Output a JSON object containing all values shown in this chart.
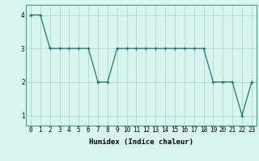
{
  "xlabel": "Humidex (Indice chaleur)",
  "ylabel": "",
  "x": [
    0,
    1,
    2,
    3,
    4,
    5,
    6,
    7,
    8,
    9,
    10,
    11,
    12,
    13,
    14,
    15,
    16,
    17,
    18,
    19,
    20,
    21,
    22,
    23
  ],
  "y": [
    4,
    4,
    3,
    3,
    3,
    3,
    3,
    2,
    2,
    3,
    3,
    3,
    3,
    3,
    3,
    3,
    3,
    3,
    3,
    2,
    2,
    2,
    1,
    2
  ],
  "line_color": "#1a7a6e",
  "marker": "+",
  "marker_color": "#1a7a6e",
  "bg_color": "#d8f5f0",
  "grid_color": "#aed8d2",
  "ylim": [
    0.7,
    4.3
  ],
  "xlim": [
    -0.5,
    23.5
  ],
  "yticks": [
    1,
    2,
    3,
    4
  ],
  "xticks": [
    0,
    1,
    2,
    3,
    4,
    5,
    6,
    7,
    8,
    9,
    10,
    11,
    12,
    13,
    14,
    15,
    16,
    17,
    18,
    19,
    20,
    21,
    22,
    23
  ],
  "xlabel_fontsize": 6.5,
  "tick_fontsize": 5.5,
  "linewidth": 0.9,
  "markersize": 3
}
